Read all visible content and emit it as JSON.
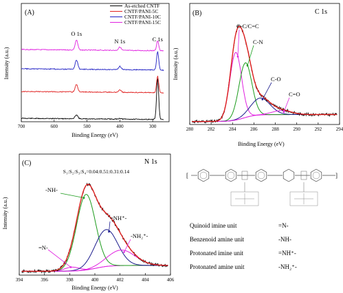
{
  "colors": {
    "black": "#000000",
    "red": "#e0201f",
    "blue": "#1f1fc4",
    "magenta": "#e020e0",
    "green": "#1a9a1a",
    "navy": "#1a1a8c"
  },
  "chart_data": [
    {
      "panel": "(A)",
      "type": "line",
      "xlabel": "Binding Energy (eV)",
      "ylabel": "Intensity (a.u.)",
      "xlim": [
        700,
        250
      ],
      "xticks": [
        "700",
        "600",
        "500",
        "400",
        "300"
      ],
      "xtick_values": [
        700,
        600,
        500,
        400,
        300
      ],
      "legend_position": "top-right",
      "annotations": [
        {
          "text": "O 1s",
          "x": 532
        },
        {
          "text": "N 1s",
          "x": 400
        },
        {
          "text": "C 1s",
          "x": 285
        }
      ],
      "series": [
        {
          "name": "As-etched CNTF",
          "color": "black",
          "offset": 0,
          "peaks": [
            {
              "x": 532,
              "h": 5
            },
            {
              "x": 400,
              "h": 1
            },
            {
              "x": 285,
              "h": 50
            }
          ]
        },
        {
          "name": "CNTF/PANI-5C",
          "color": "red",
          "offset": 1,
          "peaks": [
            {
              "x": 532,
              "h": 9
            },
            {
              "x": 400,
              "h": 3
            },
            {
              "x": 285,
              "h": 20
            }
          ]
        },
        {
          "name": "CNTF/PANI-10C",
          "color": "blue",
          "offset": 2,
          "peaks": [
            {
              "x": 532,
              "h": 11
            },
            {
              "x": 400,
              "h": 4
            },
            {
              "x": 285,
              "h": 22
            }
          ]
        },
        {
          "name": "CNTF/PANI-15C",
          "color": "magenta",
          "offset": 3,
          "peaks": [
            {
              "x": 532,
              "h": 12
            },
            {
              "x": 400,
              "h": 4
            },
            {
              "x": 285,
              "h": 12
            }
          ]
        }
      ]
    },
    {
      "panel": "(B)",
      "type": "line",
      "title": "C 1s",
      "xlabel": "Binding Energy (eV)",
      "ylabel": "Intensity (a.u.)",
      "xlim": [
        280,
        294
      ],
      "xticks": [
        "280",
        "282",
        "284",
        "286",
        "288",
        "290",
        "292",
        "294"
      ],
      "xtick_values": [
        280,
        282,
        284,
        286,
        288,
        290,
        292,
        294
      ],
      "ylim": [
        0,
        110
      ],
      "background": {
        "from": 3,
        "to": 10
      },
      "components": [
        {
          "label": "C-C/C=C",
          "center": 284.3,
          "height": 68,
          "width": 0.55,
          "color": "magenta"
        },
        {
          "label": "C-N",
          "center": 285.2,
          "height": 55,
          "width": 0.6,
          "color": "green"
        },
        {
          "label": "C-O",
          "center": 286.6,
          "height": 17,
          "width": 0.9,
          "color": "navy"
        },
        {
          "label": "C=O",
          "center": 288.6,
          "height": 4,
          "width": 0.9,
          "color": "magenta"
        }
      ],
      "envelope_color": "red",
      "raw_color": "black"
    },
    {
      "panel": "(C)",
      "type": "line",
      "title": "N 1s",
      "ratio_text": "S₁:S₂:S₃:S₄=0.04:0.51:0.31:0.14",
      "xlabel": "Binding Energy (eV)",
      "ylabel": "Intensity (a.u.)",
      "xlim": [
        394,
        406
      ],
      "xticks": [
        "394",
        "396",
        "398",
        "400",
        "402",
        "404",
        "406"
      ],
      "xtick_values": [
        394,
        396,
        398,
        400,
        402,
        404,
        406
      ],
      "ylim": [
        0,
        105
      ],
      "background": {
        "from": 4,
        "to": 10
      },
      "components": [
        {
          "label": "=N-",
          "center": 398.2,
          "height": 4,
          "width": 0.6,
          "color": "magenta"
        },
        {
          "label": "-NH-",
          "center": 399.3,
          "height": 78,
          "width": 0.75,
          "color": "green"
        },
        {
          "label": "=NH⁺-",
          "center": 400.9,
          "height": 38,
          "width": 0.9,
          "color": "navy"
        },
        {
          "label": "-NH₂⁺-",
          "center": 402.1,
          "height": 16,
          "width": 1.1,
          "color": "magenta"
        }
      ],
      "envelope_color": "red",
      "raw_color": "black"
    }
  ],
  "structure": {
    "labels": [
      {
        "unit": "Quinoid imine unit",
        "formula": "=N-"
      },
      {
        "unit": "Benzenoid amine unit",
        "formula": "-NH-"
      },
      {
        "unit": "Protonated imine unit",
        "formula": "=NH⁺-"
      },
      {
        "unit": "Protonated amine unit",
        "formula": "-NH₂⁺-"
      }
    ]
  }
}
